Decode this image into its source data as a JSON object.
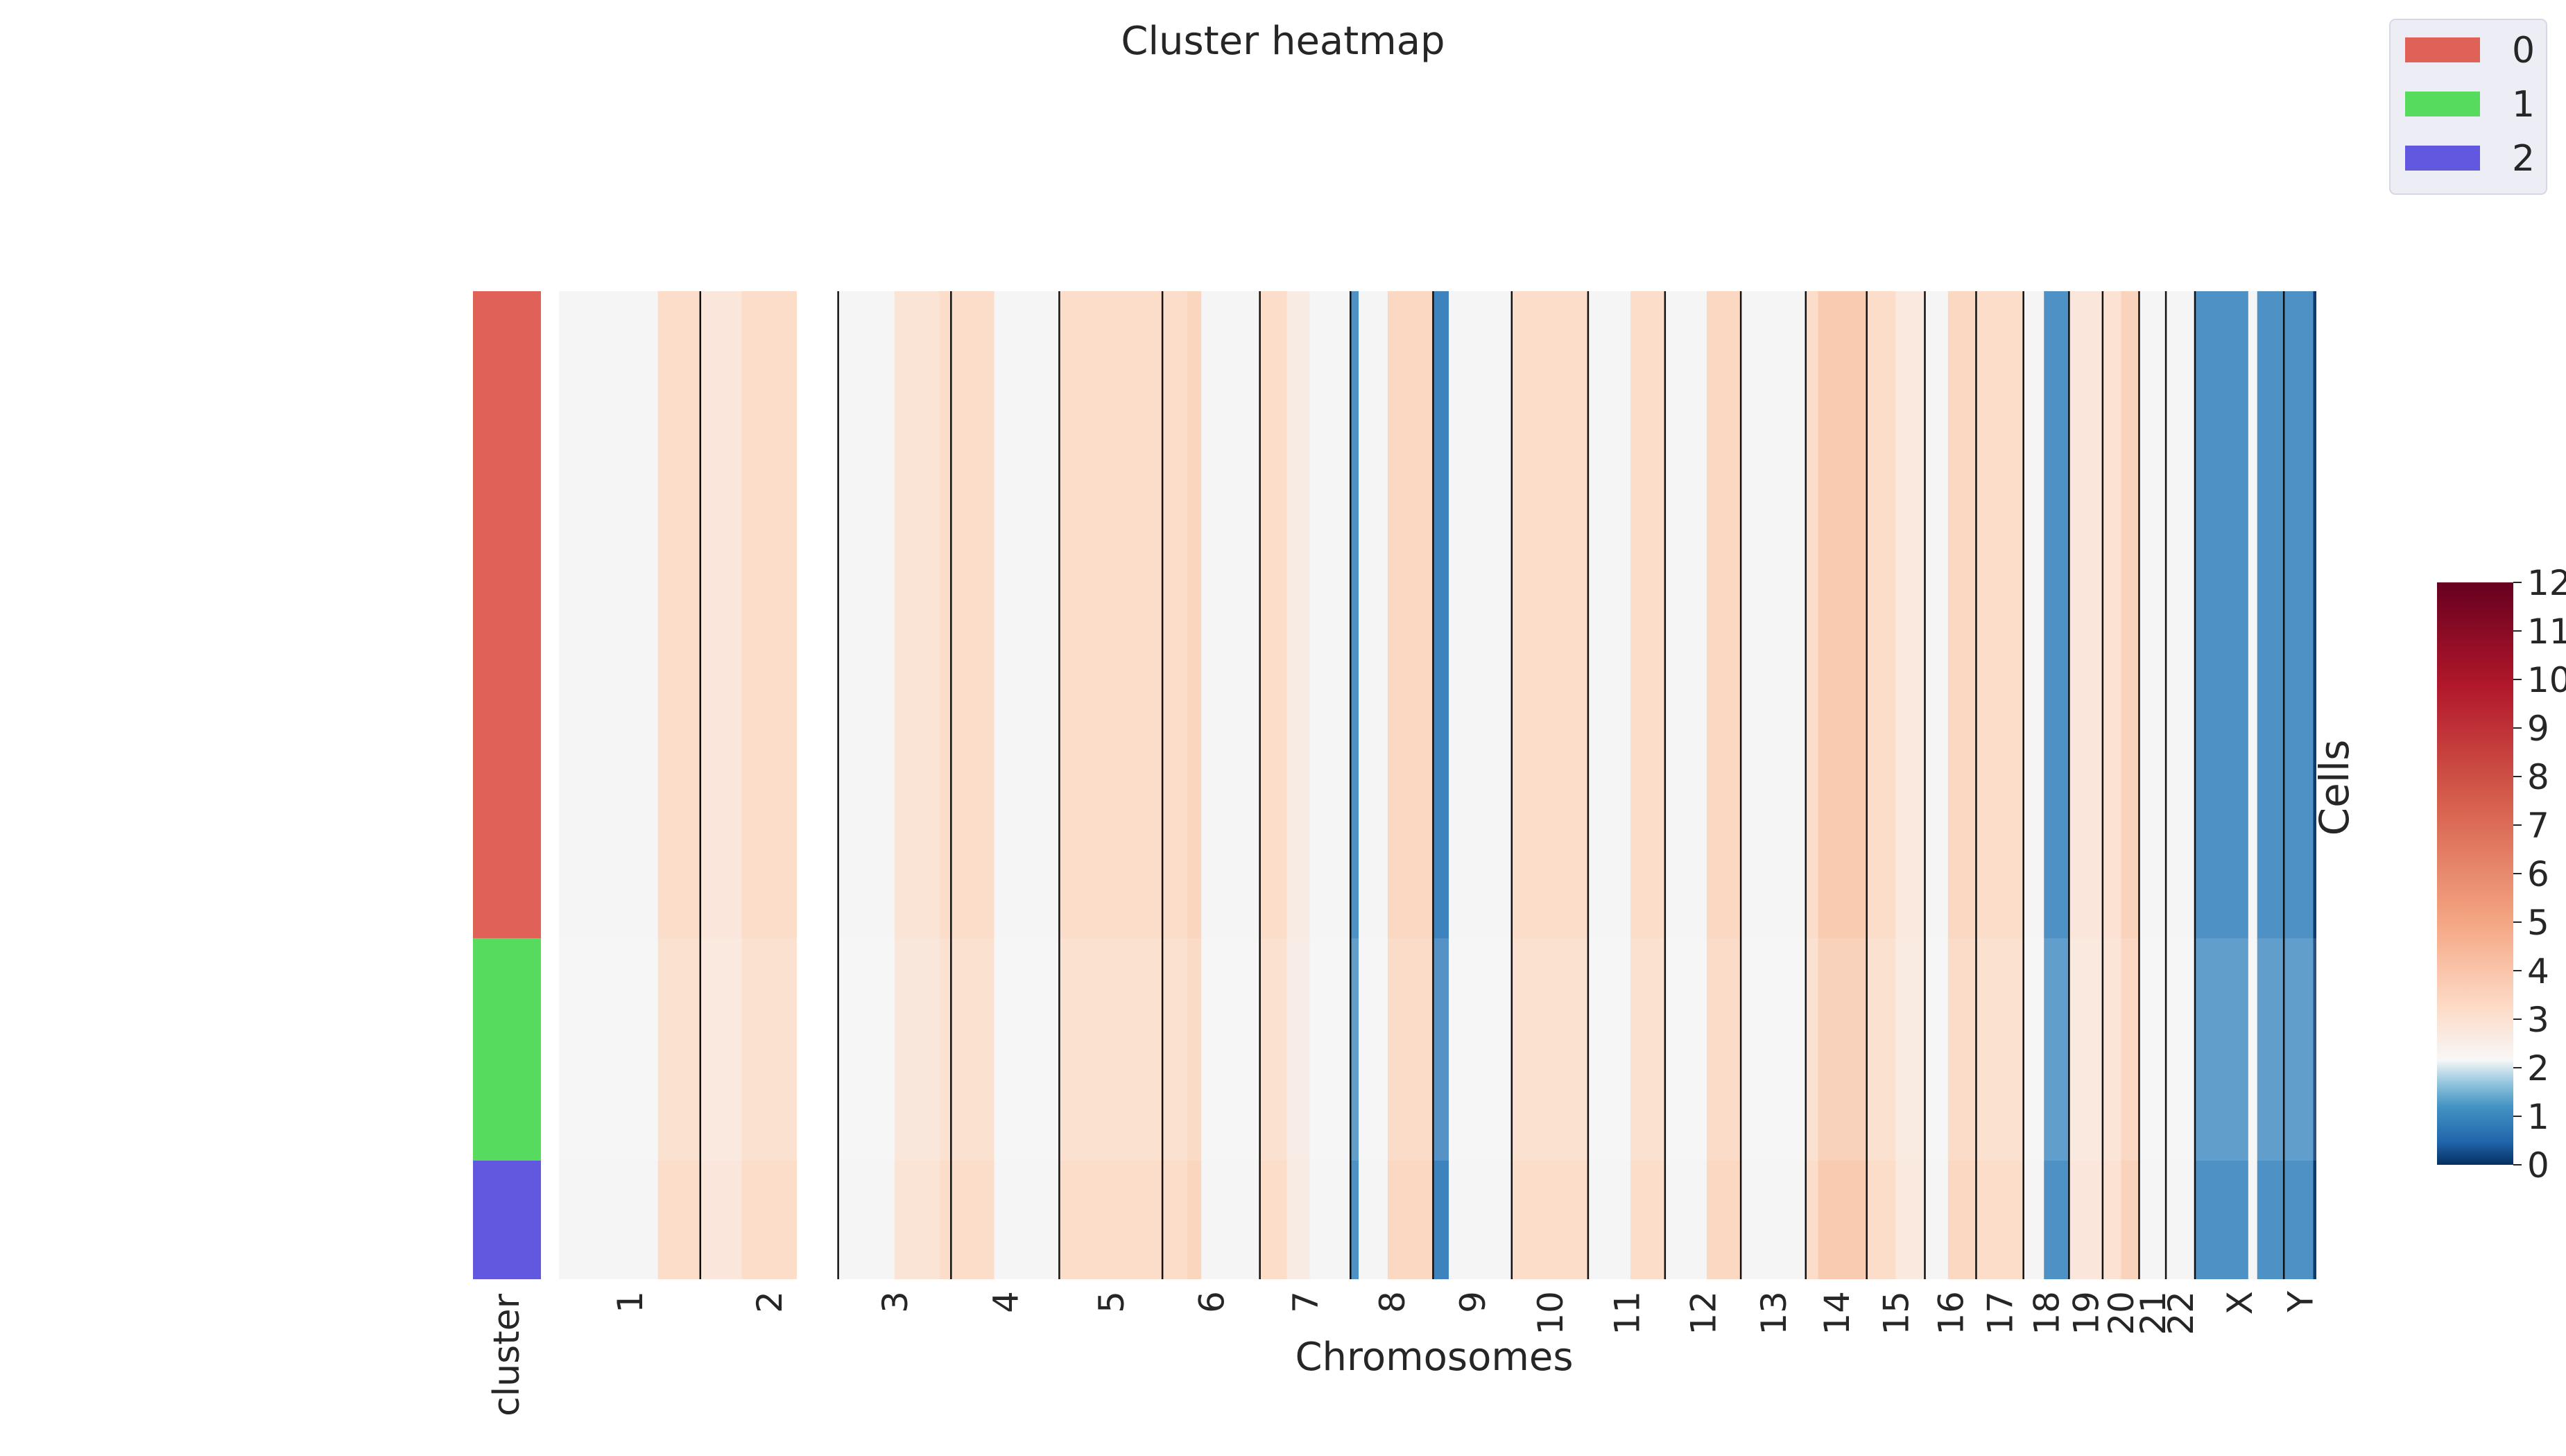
{
  "chart_data": {
    "type": "heatmap",
    "title": "Cluster heatmap",
    "xlabel": "Chromosomes",
    "ylabel": "Cells",
    "chromosomes": [
      {
        "name": "1",
        "segments": [
          [
            0.7,
            2
          ],
          [
            1.0,
            3
          ]
        ]
      },
      {
        "name": "2",
        "segments": [
          [
            0.3,
            2.6
          ],
          [
            0.7,
            3
          ]
        ]
      },
      {
        "name": "3",
        "segments": [
          [
            0.5,
            2
          ],
          [
            0.9,
            2.7
          ],
          [
            1.0,
            3
          ]
        ]
      },
      {
        "name": "4",
        "segments": [
          [
            0.4,
            3
          ],
          [
            1.0,
            2
          ]
        ]
      },
      {
        "name": "5",
        "segments": [
          [
            1.0,
            3
          ]
        ]
      },
      {
        "name": "6",
        "segments": [
          [
            0.25,
            3
          ],
          [
            0.4,
            3.3
          ],
          [
            1.0,
            2
          ]
        ]
      },
      {
        "name": "7",
        "segments": [
          [
            0.3,
            3
          ],
          [
            0.55,
            2.4
          ],
          [
            1.0,
            2
          ]
        ]
      },
      {
        "name": "8",
        "segments": [
          [
            0.1,
            0.8
          ],
          [
            0.45,
            2
          ],
          [
            1.0,
            3.2
          ]
        ]
      },
      {
        "name": "9",
        "segments": [
          [
            0.2,
            0.7
          ],
          [
            1.0,
            2
          ]
        ]
      },
      {
        "name": "10",
        "segments": [
          [
            1.0,
            3
          ]
        ]
      },
      {
        "name": "11",
        "segments": [
          [
            0.55,
            2
          ],
          [
            1.0,
            3
          ]
        ]
      },
      {
        "name": "12",
        "segments": [
          [
            0.55,
            2
          ],
          [
            1.0,
            3.2
          ]
        ]
      },
      {
        "name": "13",
        "segments": [
          [
            1.0,
            2
          ]
        ]
      },
      {
        "name": "14",
        "segments": [
          [
            0.2,
            3
          ],
          [
            1.0,
            3.7
          ]
        ]
      },
      {
        "name": "15",
        "segments": [
          [
            0.5,
            3
          ],
          [
            1.0,
            2.5
          ]
        ]
      },
      {
        "name": "16",
        "segments": [
          [
            0.45,
            2
          ],
          [
            1.0,
            3.2
          ]
        ]
      },
      {
        "name": "17",
        "segments": [
          [
            1.0,
            3
          ]
        ]
      },
      {
        "name": "18",
        "segments": [
          [
            0.45,
            2
          ],
          [
            1.0,
            0.8
          ]
        ]
      },
      {
        "name": "19",
        "segments": [
          [
            1.0,
            2.6
          ]
        ]
      },
      {
        "name": "20",
        "segments": [
          [
            0.5,
            2.8
          ],
          [
            1.0,
            3.4
          ]
        ]
      },
      {
        "name": "21",
        "segments": [
          [
            1.0,
            2
          ]
        ]
      },
      {
        "name": "22",
        "segments": [
          [
            1.0,
            2
          ]
        ]
      },
      {
        "name": "X",
        "segments": [
          [
            0.6,
            0.8
          ],
          [
            0.7,
            2
          ],
          [
            1.0,
            0.8
          ]
        ]
      },
      {
        "name": "Y",
        "segments": [
          [
            0.9,
            0.8
          ],
          [
            1.0,
            0.1
          ]
        ]
      }
    ],
    "chrom_widths": [
      248,
      242,
      198,
      190,
      181,
      171,
      159,
      145,
      138,
      134,
      135,
      133,
      114,
      107,
      102,
      90,
      83,
      80,
      59,
      64,
      47,
      51,
      156,
      57
    ],
    "clusters": [
      {
        "label": "0",
        "fraction": 0.655,
        "color": "#E06158"
      },
      {
        "label": "1",
        "fraction": 0.225,
        "color": "#56DB5E"
      },
      {
        "label": "2",
        "fraction": 0.12,
        "color": "#6258E0"
      }
    ],
    "cluster_label": "cluster",
    "legend_position": "top-right",
    "colorbar": {
      "min": 0,
      "max": 12,
      "ticks": [
        "0",
        "1",
        "2",
        "3",
        "4",
        "5",
        "6",
        "7",
        "8",
        "9",
        "10",
        "11",
        "12"
      ]
    },
    "colors": {
      "diploid": "#F5F5F5",
      "gain": "#FBDDC9",
      "loss": "#6AAED6",
      "deep_loss": "#0F4A86",
      "divider": "#111111"
    }
  }
}
